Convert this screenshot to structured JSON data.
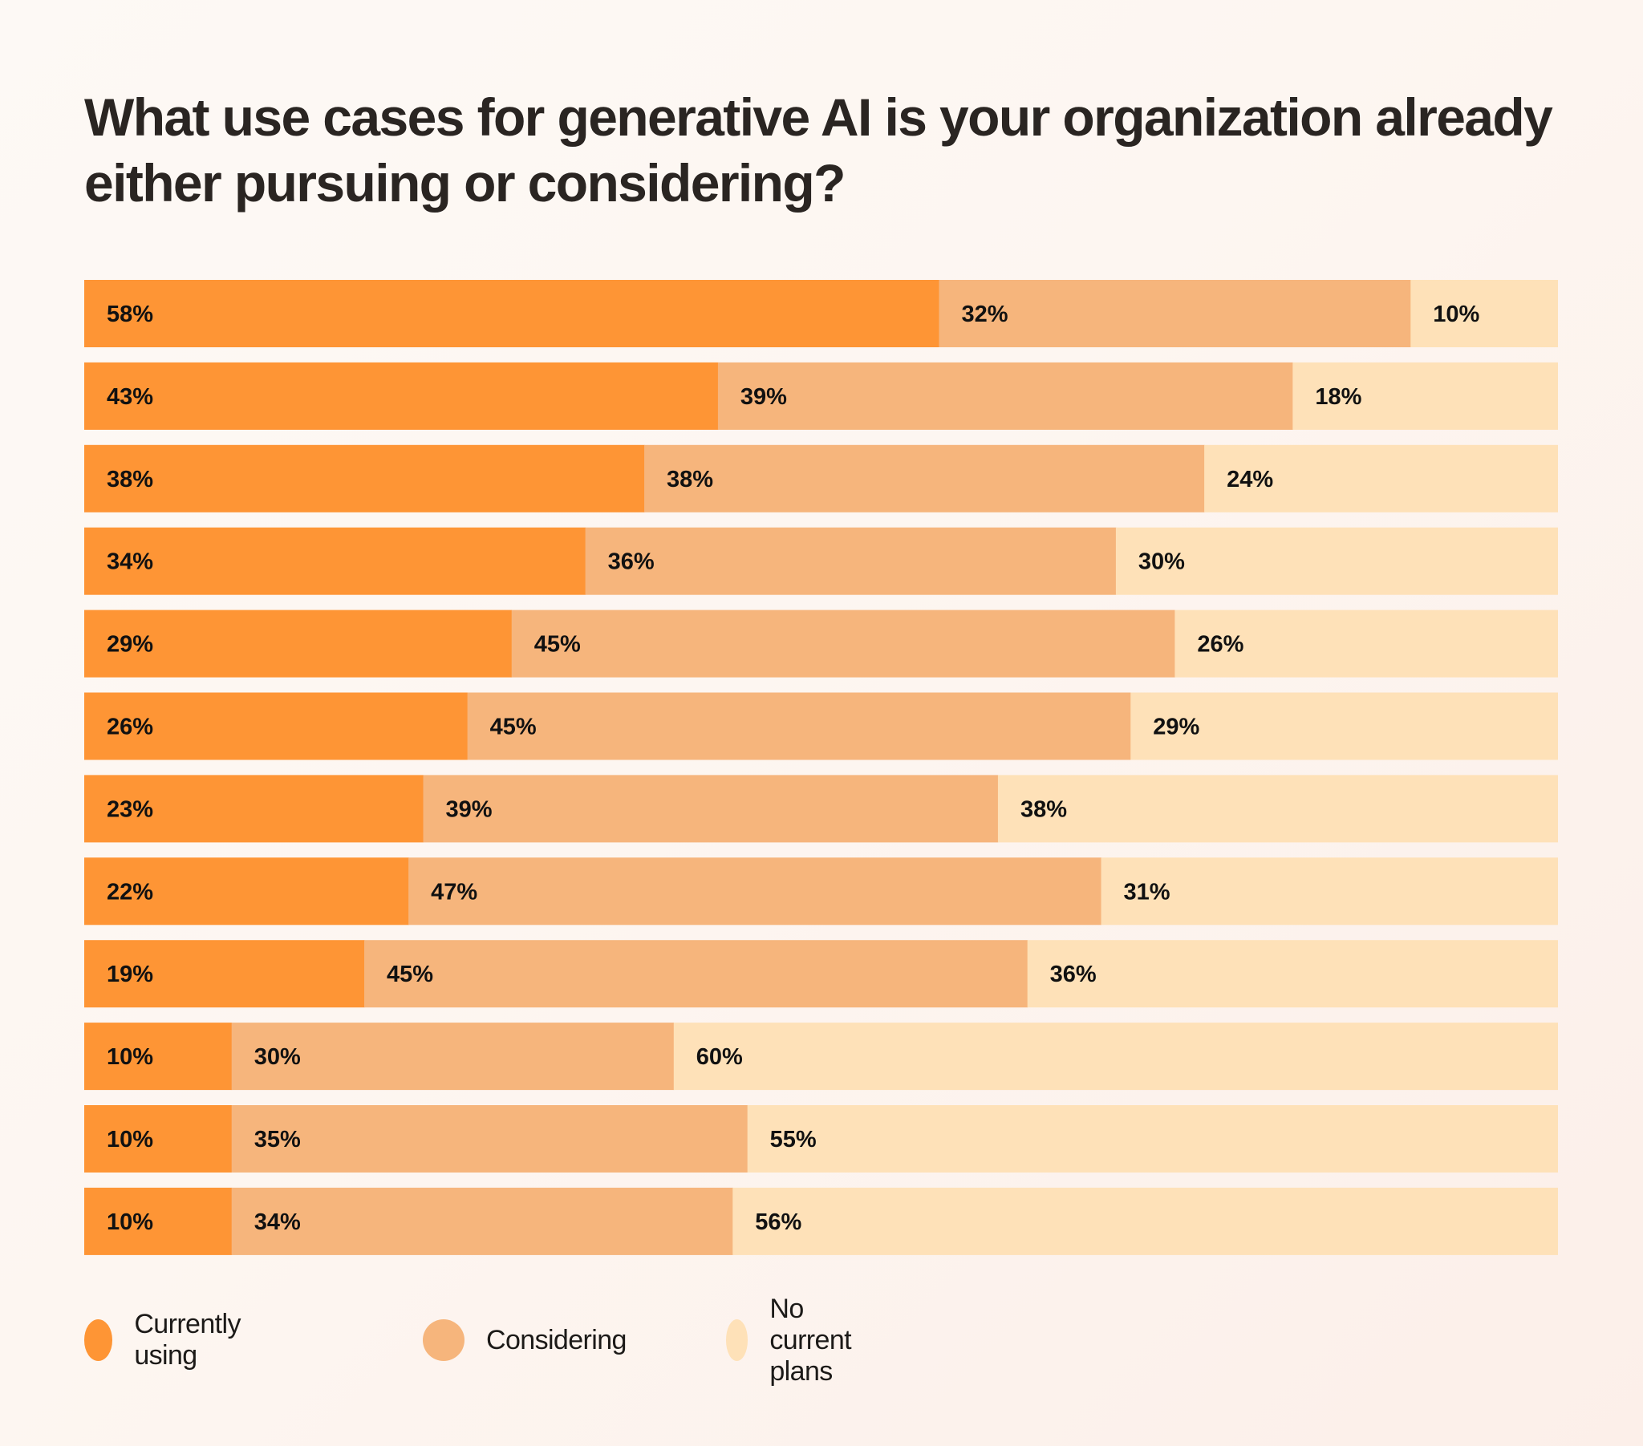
{
  "chart_data": {
    "type": "bar",
    "orientation": "horizontal",
    "stacked": true,
    "title": "What use cases for generative AI is your organization already either pursuing or considering?",
    "xlabel": "",
    "ylabel": "",
    "xlim": [
      0,
      100
    ],
    "grid": false,
    "legend_position": "bottom-left",
    "categories": [
      "",
      "",
      "",
      "",
      "",
      "",
      "",
      "",
      "",
      "",
      "",
      ""
    ],
    "series": [
      {
        "name": "Currently using",
        "color": "#fe9535",
        "values": [
          58,
          43,
          38,
          34,
          29,
          26,
          23,
          22,
          19,
          10,
          10,
          10
        ]
      },
      {
        "name": "Considering",
        "color": "#f6b57c",
        "values": [
          32,
          39,
          38,
          36,
          45,
          45,
          39,
          47,
          45,
          30,
          35,
          34
        ]
      },
      {
        "name": "No current plans",
        "color": "#fee1b8",
        "values": [
          10,
          18,
          24,
          30,
          26,
          29,
          38,
          31,
          36,
          60,
          55,
          56
        ]
      }
    ],
    "value_suffix": "%"
  },
  "legend": {
    "items": [
      {
        "label": "Currently using",
        "color": "#fe9535"
      },
      {
        "label": "Considering",
        "color": "#f6b57c"
      },
      {
        "label": "No current plans",
        "color": "#fee1b8"
      }
    ]
  }
}
